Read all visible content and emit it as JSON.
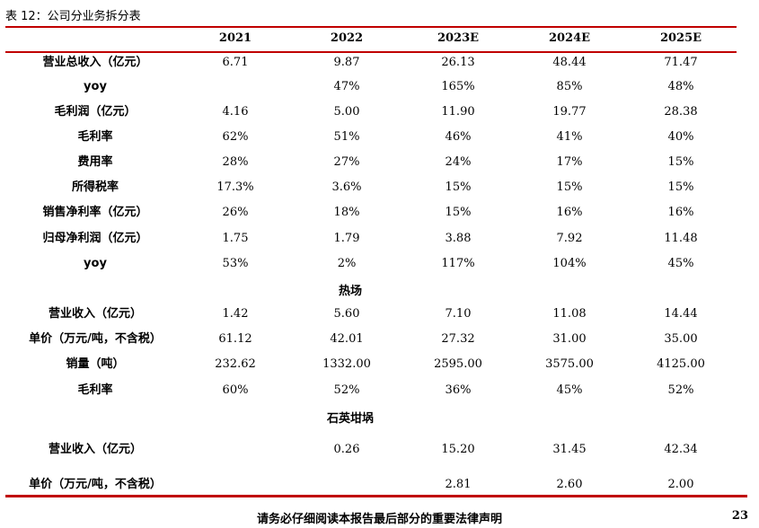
{
  "title": "表 12：公司分业务拆分表",
  "columns": [
    "2021",
    "2022",
    "2023E",
    "2024E",
    "2025E"
  ],
  "rows_company": [
    {
      "label": "营业总收入（亿元）",
      "values": [
        "6.71",
        "9.87",
        "26.13",
        "48.44",
        "71.47"
      ]
    },
    {
      "label": "yoy",
      "values": [
        "",
        "47%",
        "165%",
        "85%",
        "48%"
      ]
    },
    {
      "label": "毛利润（亿元）",
      "values": [
        "4.16",
        "5.00",
        "11.90",
        "19.77",
        "28.38"
      ]
    },
    {
      "label": "毛利率",
      "values": [
        "62%",
        "51%",
        "46%",
        "41%",
        "40%"
      ]
    },
    {
      "label": "费用率",
      "values": [
        "28%",
        "27%",
        "24%",
        "17%",
        "15%"
      ]
    },
    {
      "label": "所得税率",
      "values": [
        "17.3%",
        "3.6%",
        "15%",
        "15%",
        "15%"
      ]
    },
    {
      "label": "销售净利率（亿元）",
      "values": [
        "26%",
        "18%",
        "15%",
        "16%",
        "16%"
      ]
    },
    {
      "label": "归母净利润（亿元）",
      "values": [
        "1.75",
        "1.79",
        "3.88",
        "7.92",
        "11.48"
      ]
    },
    {
      "label": "yoy",
      "values": [
        "53%",
        "2%",
        "117%",
        "104%",
        "45%"
      ]
    }
  ],
  "section_thermal": "热场",
  "rows_thermal": [
    {
      "label": "营业收入（亿元）",
      "values": [
        "1.42",
        "5.60",
        "7.10",
        "11.08",
        "14.44"
      ]
    },
    {
      "label": "单价（万元/吨，不含税）",
      "values": [
        "61.12",
        "42.01",
        "27.32",
        "31.00",
        "35.00"
      ]
    },
    {
      "label": "销量（吨）",
      "values": [
        "232.62",
        "1332.00",
        "2595.00",
        "3575.00",
        "4125.00"
      ]
    },
    {
      "label": "毛利率",
      "values": [
        "60%",
        "52%",
        "36%",
        "45%",
        "52%"
      ]
    }
  ],
  "section_quartz": "石英坩埚",
  "rows_quartz": [
    {
      "label": "营业收入（亿元）",
      "values": [
        "",
        "0.26",
        "15.20",
        "31.45",
        "42.34"
      ]
    },
    {
      "label": "单价（万元/吨，不含税）",
      "values": [
        "",
        "",
        "2.81",
        "2.60",
        "2.00"
      ]
    }
  ],
  "footer": {
    "disclaimer": "请务必仔细阅读本报告最后部分的重要法律声明",
    "page_number": "23"
  },
  "colors": {
    "rule": "#c00000"
  }
}
